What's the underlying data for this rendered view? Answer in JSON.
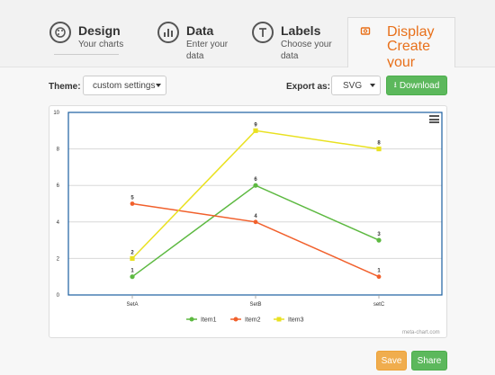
{
  "tabs": [
    {
      "title": "Design",
      "subtitle": "Your charts",
      "icon": "palette-icon"
    },
    {
      "title": "Data",
      "subtitle": "Enter your data",
      "icon": "bar-chart-icon"
    },
    {
      "title": "Labels",
      "subtitle": "Choose your data",
      "icon": "text-label-icon"
    },
    {
      "title": "Display",
      "subtitle": "Create your chart",
      "icon": "display-icon"
    }
  ],
  "toolbar": {
    "theme_label": "Theme:",
    "theme_value": "custom settings",
    "export_label": "Export as:",
    "export_value": "SVG",
    "download_label": "Download"
  },
  "actions": {
    "save_label": "Save",
    "share_label": "Share"
  },
  "credit": "meta-chart.com",
  "colors": {
    "accent": "#e8701a",
    "green": "#5cb85c",
    "orange": "#f0ad4e",
    "axis_line": "#1a5fa0"
  },
  "chart_data": {
    "type": "line",
    "categories": [
      "SetA",
      "SetB",
      "setC"
    ],
    "series": [
      {
        "name": "Item1",
        "values": [
          1,
          6,
          3
        ],
        "color": "#5db941"
      },
      {
        "name": "Item2",
        "values": [
          5,
          4,
          1
        ],
        "color": "#f1602c"
      },
      {
        "name": "Item3",
        "values": [
          2,
          9,
          8
        ],
        "color": "#e9e120"
      }
    ],
    "ylim": [
      0,
      10
    ],
    "yticks": [
      "0",
      "2",
      "4",
      "6",
      "8",
      "10"
    ],
    "grid": true,
    "legend": "bottom"
  }
}
